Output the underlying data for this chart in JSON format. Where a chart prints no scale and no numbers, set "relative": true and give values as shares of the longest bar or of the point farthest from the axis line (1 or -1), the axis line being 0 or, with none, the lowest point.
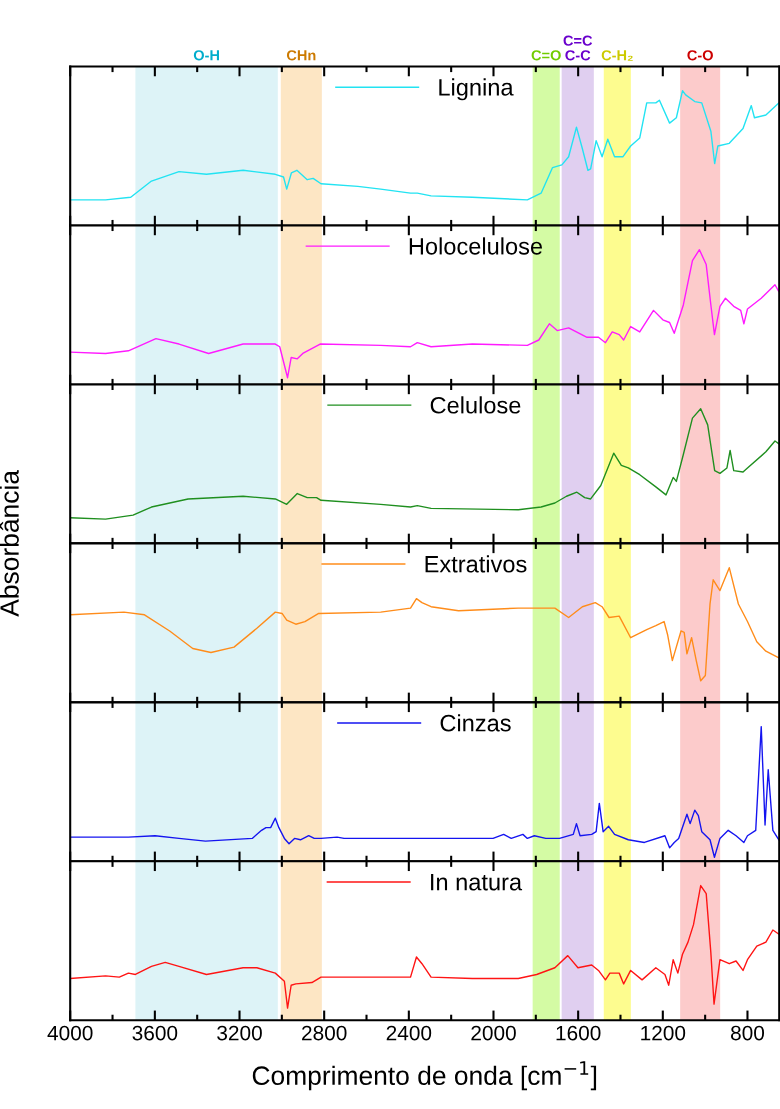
{
  "chart_data": [
    {
      "type": "line",
      "relative": true,
      "tick_labels": false,
      "legend": "top",
      "grid": false,
      "xlim": [
        4000,
        650
      ],
      "xticks": [
        4000,
        {
          "value": 3800,
          "label": null
        },
        3600,
        {
          "value": 3400,
          "label": null
        },
        3200,
        {
          "value": 3000,
          "label": null
        },
        2800,
        {
          "value": 2600,
          "label": null
        },
        2400,
        {
          "value": 2200,
          "label": null
        },
        2000,
        {
          "value": 1800,
          "label": null
        },
        1600,
        {
          "value": 1400,
          "label": null
        },
        1200,
        {
          "value": 1000,
          "label": null
        },
        800
      ],
      "bands": [
        {
          "axis": "x",
          "from": 3692,
          "to": 3019,
          "label": "O-H",
          "color": "#ddf3f7"
        },
        {
          "axis": "x",
          "from": 3005,
          "to": 2811,
          "label": "CHn",
          "color": "#fde6c4"
        },
        {
          "axis": "x",
          "from": 1815,
          "to": 1687,
          "label": "C=O",
          "color": "#d4fba4"
        },
        {
          "axis": "x",
          "from": 1678,
          "to": 1526,
          "label": "C=C\nC-C",
          "color": "#e0cff0"
        },
        {
          "axis": "x",
          "from": 1479,
          "to": 1351,
          "label": "C-H₂",
          "color": "#fdfc8f"
        },
        {
          "axis": "x",
          "from": 1118,
          "to": 929,
          "label": "C-O",
          "color": "#fccbcb"
        }
      ],
      "x": [
        4000,
        3833,
        3714,
        3616,
        3486,
        3356,
        3183,
        3031,
        2992,
        2977,
        2955,
        2929,
        2880,
        2852,
        2815,
        2641,
        2533,
        2392,
        2360,
        2295,
        2100,
        1840,
        1775,
        1721,
        1677,
        1645,
        1608,
        1580,
        1554,
        1541,
        1515,
        1487,
        1460,
        1428,
        1389,
        1352,
        1309,
        1276,
        1233,
        1216,
        1168,
        1136,
        1107,
        1092,
        1049,
        1016,
        973,
        955,
        940,
        886,
        821,
        782,
        767,
        713,
        652
      ],
      "series": [
        {
          "name": "Lignina",
          "color": "#22e3f2",
          "values": [
            0.19,
            0.19,
            0.21,
            0.33,
            0.4,
            0.38,
            0.41,
            0.38,
            0.36,
            0.27,
            0.39,
            0.41,
            0.34,
            0.35,
            0.31,
            0.29,
            0.27,
            0.24,
            0.24,
            0.22,
            0.21,
            0.19,
            0.24,
            0.43,
            0.45,
            0.51,
            0.73,
            0.57,
            0.41,
            0.42,
            0.63,
            0.51,
            0.64,
            0.51,
            0.51,
            0.59,
            0.65,
            0.91,
            0.91,
            0.93,
            0.76,
            0.8,
            1.0,
            0.97,
            0.92,
            0.91,
            0.7,
            0.46,
            0.59,
            0.61,
            0.72,
            0.89,
            0.8,
            0.82,
            0.91
          ]
        }
      ]
    },
    {
      "type": "line",
      "relative": true,
      "tick_labels": false,
      "legend": "top",
      "grid": false,
      "xlim": [
        4000,
        650
      ],
      "xticks": [
        4000,
        {
          "value": 3800,
          "label": null
        },
        3600,
        {
          "value": 3400,
          "label": null
        },
        3200,
        {
          "value": 3000,
          "label": null
        },
        2800,
        {
          "value": 2600,
          "label": null
        },
        2400,
        {
          "value": 2200,
          "label": null
        },
        2000,
        {
          "value": 1800,
          "label": null
        },
        1600,
        {
          "value": 1400,
          "label": null
        },
        1200,
        {
          "value": 1000,
          "label": null
        },
        800
      ],
      "bands": [
        {
          "axis": "x",
          "from": 3692,
          "to": 3019,
          "color": "#ddf3f7"
        },
        {
          "axis": "x",
          "from": 3005,
          "to": 2811,
          "color": "#fde6c4"
        },
        {
          "axis": "x",
          "from": 1815,
          "to": 1687,
          "color": "#d4fba4"
        },
        {
          "axis": "x",
          "from": 1678,
          "to": 1526,
          "color": "#e0cff0"
        },
        {
          "axis": "x",
          "from": 1479,
          "to": 1351,
          "color": "#fdfc8f"
        },
        {
          "axis": "x",
          "from": 1118,
          "to": 929,
          "color": "#fccbcb"
        }
      ],
      "x": [
        4000,
        3833,
        3725,
        3595,
        3486,
        3346,
        3183,
        3031,
        3010,
        2973,
        2956,
        2927,
        2901,
        2819,
        2533,
        2392,
        2360,
        2295,
        2100,
        1840,
        1786,
        1736,
        1699,
        1645,
        1558,
        1504,
        1471,
        1439,
        1406,
        1385,
        1352,
        1309,
        1244,
        1200,
        1168,
        1146,
        1103,
        1060,
        1027,
        995,
        973,
        956,
        930,
        904,
        865,
        832,
        817,
        800,
        735,
        670,
        652
      ],
      "series": [
        {
          "name": "Holocelulose",
          "color": "#ff1aff",
          "values": [
            0.24,
            0.23,
            0.25,
            0.34,
            0.3,
            0.23,
            0.3,
            0.3,
            0.28,
            0.05,
            0.2,
            0.19,
            0.23,
            0.3,
            0.29,
            0.28,
            0.31,
            0.28,
            0.3,
            0.29,
            0.33,
            0.45,
            0.4,
            0.42,
            0.35,
            0.35,
            0.31,
            0.39,
            0.37,
            0.33,
            0.43,
            0.39,
            0.55,
            0.48,
            0.46,
            0.38,
            0.59,
            0.92,
            1.0,
            0.89,
            0.59,
            0.37,
            0.58,
            0.64,
            0.58,
            0.55,
            0.45,
            0.56,
            0.64,
            0.74,
            0.69
          ]
        }
      ]
    },
    {
      "type": "line",
      "relative": true,
      "tick_labels": false,
      "legend": "top",
      "grid": false,
      "xlim": [
        4000,
        650
      ],
      "xticks": [
        4000,
        {
          "value": 3800,
          "label": null
        },
        3600,
        {
          "value": 3400,
          "label": null
        },
        3200,
        {
          "value": 3000,
          "label": null
        },
        2800,
        {
          "value": 2600,
          "label": null
        },
        2400,
        {
          "value": 2200,
          "label": null
        },
        2000,
        {
          "value": 1800,
          "label": null
        },
        1600,
        {
          "value": 1400,
          "label": null
        },
        1200,
        {
          "value": 1000,
          "label": null
        },
        800
      ],
      "bands": [
        {
          "axis": "x",
          "from": 3692,
          "to": 3019,
          "color": "#ddf3f7"
        },
        {
          "axis": "x",
          "from": 3005,
          "to": 2811,
          "color": "#fde6c4"
        },
        {
          "axis": "x",
          "from": 1815,
          "to": 1687,
          "color": "#d4fba4"
        },
        {
          "axis": "x",
          "from": 1678,
          "to": 1526,
          "color": "#e0cff0"
        },
        {
          "axis": "x",
          "from": 1479,
          "to": 1351,
          "color": "#fdfc8f"
        },
        {
          "axis": "x",
          "from": 1118,
          "to": 929,
          "color": "#fccbcb"
        }
      ],
      "x": [
        4000,
        3833,
        3703,
        3616,
        3443,
        3183,
        3031,
        2977,
        2927,
        2880,
        2836,
        2815,
        2533,
        2392,
        2360,
        2295,
        1883,
        1775,
        1710,
        1655,
        1606,
        1569,
        1541,
        1493,
        1432,
        1396,
        1363,
        1309,
        1233,
        1185,
        1151,
        1136,
        1103,
        1060,
        1021,
        988,
        955,
        930,
        897,
        882,
        865,
        821,
        800,
        713,
        670,
        652
      ],
      "series": [
        {
          "name": "Celulose",
          "color": "#1f8f1f",
          "values": [
            0.19,
            0.18,
            0.21,
            0.27,
            0.33,
            0.35,
            0.33,
            0.29,
            0.37,
            0.34,
            0.34,
            0.32,
            0.29,
            0.27,
            0.28,
            0.26,
            0.25,
            0.27,
            0.3,
            0.35,
            0.38,
            0.34,
            0.33,
            0.43,
            0.67,
            0.58,
            0.56,
            0.51,
            0.42,
            0.36,
            0.49,
            0.46,
            0.66,
            0.93,
            1.0,
            0.88,
            0.54,
            0.52,
            0.56,
            0.69,
            0.54,
            0.53,
            0.56,
            0.68,
            0.76,
            0.74
          ]
        }
      ]
    },
    {
      "type": "line",
      "relative": true,
      "tick_labels": false,
      "legend": "top",
      "grid": false,
      "ylabel": "Absorbância",
      "xlim": [
        4000,
        650
      ],
      "xticks": [
        4000,
        {
          "value": 3800,
          "label": null
        },
        3600,
        {
          "value": 3400,
          "label": null
        },
        3200,
        {
          "value": 3000,
          "label": null
        },
        2800,
        {
          "value": 2600,
          "label": null
        },
        2400,
        {
          "value": 2200,
          "label": null
        },
        2000,
        {
          "value": 1800,
          "label": null
        },
        1600,
        {
          "value": 1400,
          "label": null
        },
        1200,
        {
          "value": 1000,
          "label": null
        },
        800
      ],
      "bands": [
        {
          "axis": "x",
          "from": 3692,
          "to": 3019,
          "color": "#ddf3f7"
        },
        {
          "axis": "x",
          "from": 3005,
          "to": 2811,
          "color": "#fde6c4"
        },
        {
          "axis": "x",
          "from": 1815,
          "to": 1687,
          "color": "#d4fba4"
        },
        {
          "axis": "x",
          "from": 1678,
          "to": 1526,
          "color": "#e0cff0"
        },
        {
          "axis": "x",
          "from": 1479,
          "to": 1351,
          "color": "#fdfc8f"
        },
        {
          "axis": "x",
          "from": 1118,
          "to": 929,
          "color": "#fccbcb"
        }
      ],
      "x": [
        4000,
        3746,
        3649,
        3530,
        3421,
        3335,
        3226,
        3118,
        3031,
        2999,
        2977,
        2934,
        2891,
        2826,
        2533,
        2392,
        2364,
        2338,
        2295,
        2165,
        1883,
        1710,
        1645,
        1580,
        1519,
        1487,
        1454,
        1406,
        1352,
        1276,
        1233,
        1194,
        1177,
        1155,
        1114,
        1099,
        1086,
        1064,
        1042,
        1021,
        999,
        977,
        962,
        930,
        886,
        843,
        800,
        756,
        713,
        652
      ],
      "series": [
        {
          "name": "Extrativos",
          "color": "#ff8c1a",
          "values": [
            0.65,
            0.67,
            0.65,
            0.53,
            0.4,
            0.37,
            0.41,
            0.55,
            0.67,
            0.66,
            0.61,
            0.58,
            0.6,
            0.66,
            0.67,
            0.7,
            0.77,
            0.74,
            0.71,
            0.68,
            0.7,
            0.7,
            0.63,
            0.71,
            0.74,
            0.71,
            0.63,
            0.64,
            0.48,
            0.54,
            0.57,
            0.6,
            0.5,
            0.31,
            0.53,
            0.52,
            0.36,
            0.48,
            0.31,
            0.16,
            0.2,
            0.73,
            0.91,
            0.83,
            1.0,
            0.73,
            0.6,
            0.45,
            0.38,
            0.33
          ]
        }
      ]
    },
    {
      "type": "line",
      "relative": true,
      "tick_labels": false,
      "legend": "top",
      "grid": false,
      "xlim": [
        4000,
        650
      ],
      "xticks": [
        4000,
        {
          "value": 3800,
          "label": null
        },
        3600,
        {
          "value": 3400,
          "label": null
        },
        3200,
        {
          "value": 3000,
          "label": null
        },
        2800,
        {
          "value": 2600,
          "label": null
        },
        2400,
        {
          "value": 2200,
          "label": null
        },
        2000,
        {
          "value": 1800,
          "label": null
        },
        1600,
        {
          "value": 1400,
          "label": null
        },
        1200,
        {
          "value": 1000,
          "label": null
        },
        800
      ],
      "bands": [
        {
          "axis": "x",
          "from": 3692,
          "to": 3019,
          "color": "#ddf3f7"
        },
        {
          "axis": "x",
          "from": 3005,
          "to": 2811,
          "color": "#fde6c4"
        },
        {
          "axis": "x",
          "from": 1815,
          "to": 1687,
          "color": "#d4fba4"
        },
        {
          "axis": "x",
          "from": 1678,
          "to": 1526,
          "color": "#e0cff0"
        },
        {
          "axis": "x",
          "from": 1479,
          "to": 1351,
          "color": "#fdfc8f"
        },
        {
          "axis": "x",
          "from": 1118,
          "to": 929,
          "color": "#fccbcb"
        }
      ],
      "x": [
        4000,
        3725,
        3599,
        3486,
        3361,
        3140,
        3096,
        3075,
        3053,
        3031,
        3014,
        2988,
        2966,
        2940,
        2912,
        2873,
        2847,
        2815,
        2739,
        2706,
        2316,
        2002,
        1952,
        1916,
        1861,
        1840,
        1807,
        1753,
        1688,
        1623,
        1608,
        1591,
        1536,
        1515,
        1500,
        1482,
        1456,
        1428,
        1363,
        1287,
        1190,
        1168,
        1146,
        1125,
        1086,
        1071,
        1049,
        1032,
        1016,
        977,
        956,
        930,
        891,
        854,
        817,
        800,
        761,
        735,
        717,
        702,
        680,
        652
      ],
      "series": [
        {
          "name": "Cinzas",
          "color": "#1414f0",
          "values": [
            0.18,
            0.18,
            0.19,
            0.17,
            0.15,
            0.17,
            0.23,
            0.25,
            0.25,
            0.32,
            0.25,
            0.17,
            0.13,
            0.17,
            0.16,
            0.19,
            0.17,
            0.17,
            0.18,
            0.17,
            0.17,
            0.17,
            0.2,
            0.17,
            0.2,
            0.17,
            0.19,
            0.17,
            0.17,
            0.2,
            0.28,
            0.19,
            0.2,
            0.22,
            0.43,
            0.22,
            0.26,
            0.2,
            0.16,
            0.14,
            0.19,
            0.1,
            0.14,
            0.17,
            0.35,
            0.28,
            0.38,
            0.34,
            0.22,
            0.16,
            0.03,
            0.17,
            0.23,
            0.19,
            0.14,
            0.19,
            0.23,
            1.0,
            0.27,
            0.68,
            0.23,
            0.16
          ]
        }
      ]
    },
    {
      "type": "line",
      "relative": true,
      "tick_labels": "x",
      "legend": "top",
      "grid": false,
      "xlabel": "Comprimento de onda [cm$^{−1}$]",
      "xlim": [
        4000,
        650
      ],
      "xticks": [
        4000,
        {
          "value": 3800,
          "label": null
        },
        3600,
        {
          "value": 3400,
          "label": null
        },
        3200,
        {
          "value": 3000,
          "label": null
        },
        2800,
        {
          "value": 2600,
          "label": null
        },
        2400,
        {
          "value": 2200,
          "label": null
        },
        2000,
        {
          "value": 1800,
          "label": null
        },
        1600,
        {
          "value": 1400,
          "label": null
        },
        1200,
        {
          "value": 1000,
          "label": null
        },
        800
      ],
      "bands": [
        {
          "axis": "x",
          "from": 3692,
          "to": 3019,
          "color": "#ddf3f7"
        },
        {
          "axis": "x",
          "from": 3005,
          "to": 2811,
          "color": "#fde6c4"
        },
        {
          "axis": "x",
          "from": 1815,
          "to": 1687,
          "color": "#d4fba4"
        },
        {
          "axis": "x",
          "from": 1678,
          "to": 1526,
          "color": "#e0cff0"
        },
        {
          "axis": "x",
          "from": 1479,
          "to": 1351,
          "color": "#fdfc8f"
        },
        {
          "axis": "x",
          "from": 1118,
          "to": 929,
          "color": "#fccbcb"
        }
      ],
      "x": [
        4000,
        3833,
        3768,
        3725,
        3692,
        3616,
        3551,
        3486,
        3356,
        3183,
        3118,
        3031,
        2988,
        2973,
        2956,
        2934,
        2858,
        2815,
        2533,
        2392,
        2364,
        2338,
        2295,
        2100,
        1883,
        1796,
        1710,
        1649,
        1601,
        1536,
        1504,
        1471,
        1450,
        1406,
        1385,
        1352,
        1298,
        1233,
        1190,
        1172,
        1151,
        1129,
        1107,
        1081,
        1055,
        1021,
        995,
        973,
        958,
        930,
        886,
        854,
        821,
        800,
        756,
        713,
        680,
        652
      ],
      "series": [
        {
          "name": "In natura",
          "color": "#ff1414",
          "values": [
            0.31,
            0.33,
            0.32,
            0.35,
            0.34,
            0.4,
            0.43,
            0.4,
            0.34,
            0.39,
            0.39,
            0.35,
            0.29,
            0.09,
            0.26,
            0.27,
            0.28,
            0.32,
            0.32,
            0.32,
            0.47,
            0.42,
            0.32,
            0.31,
            0.31,
            0.34,
            0.39,
            0.48,
            0.39,
            0.41,
            0.37,
            0.3,
            0.35,
            0.35,
            0.27,
            0.37,
            0.3,
            0.39,
            0.34,
            0.26,
            0.45,
            0.35,
            0.49,
            0.58,
            0.71,
            1.0,
            0.94,
            0.5,
            0.12,
            0.45,
            0.42,
            0.44,
            0.37,
            0.45,
            0.55,
            0.58,
            0.67,
            0.64
          ]
        }
      ]
    }
  ]
}
